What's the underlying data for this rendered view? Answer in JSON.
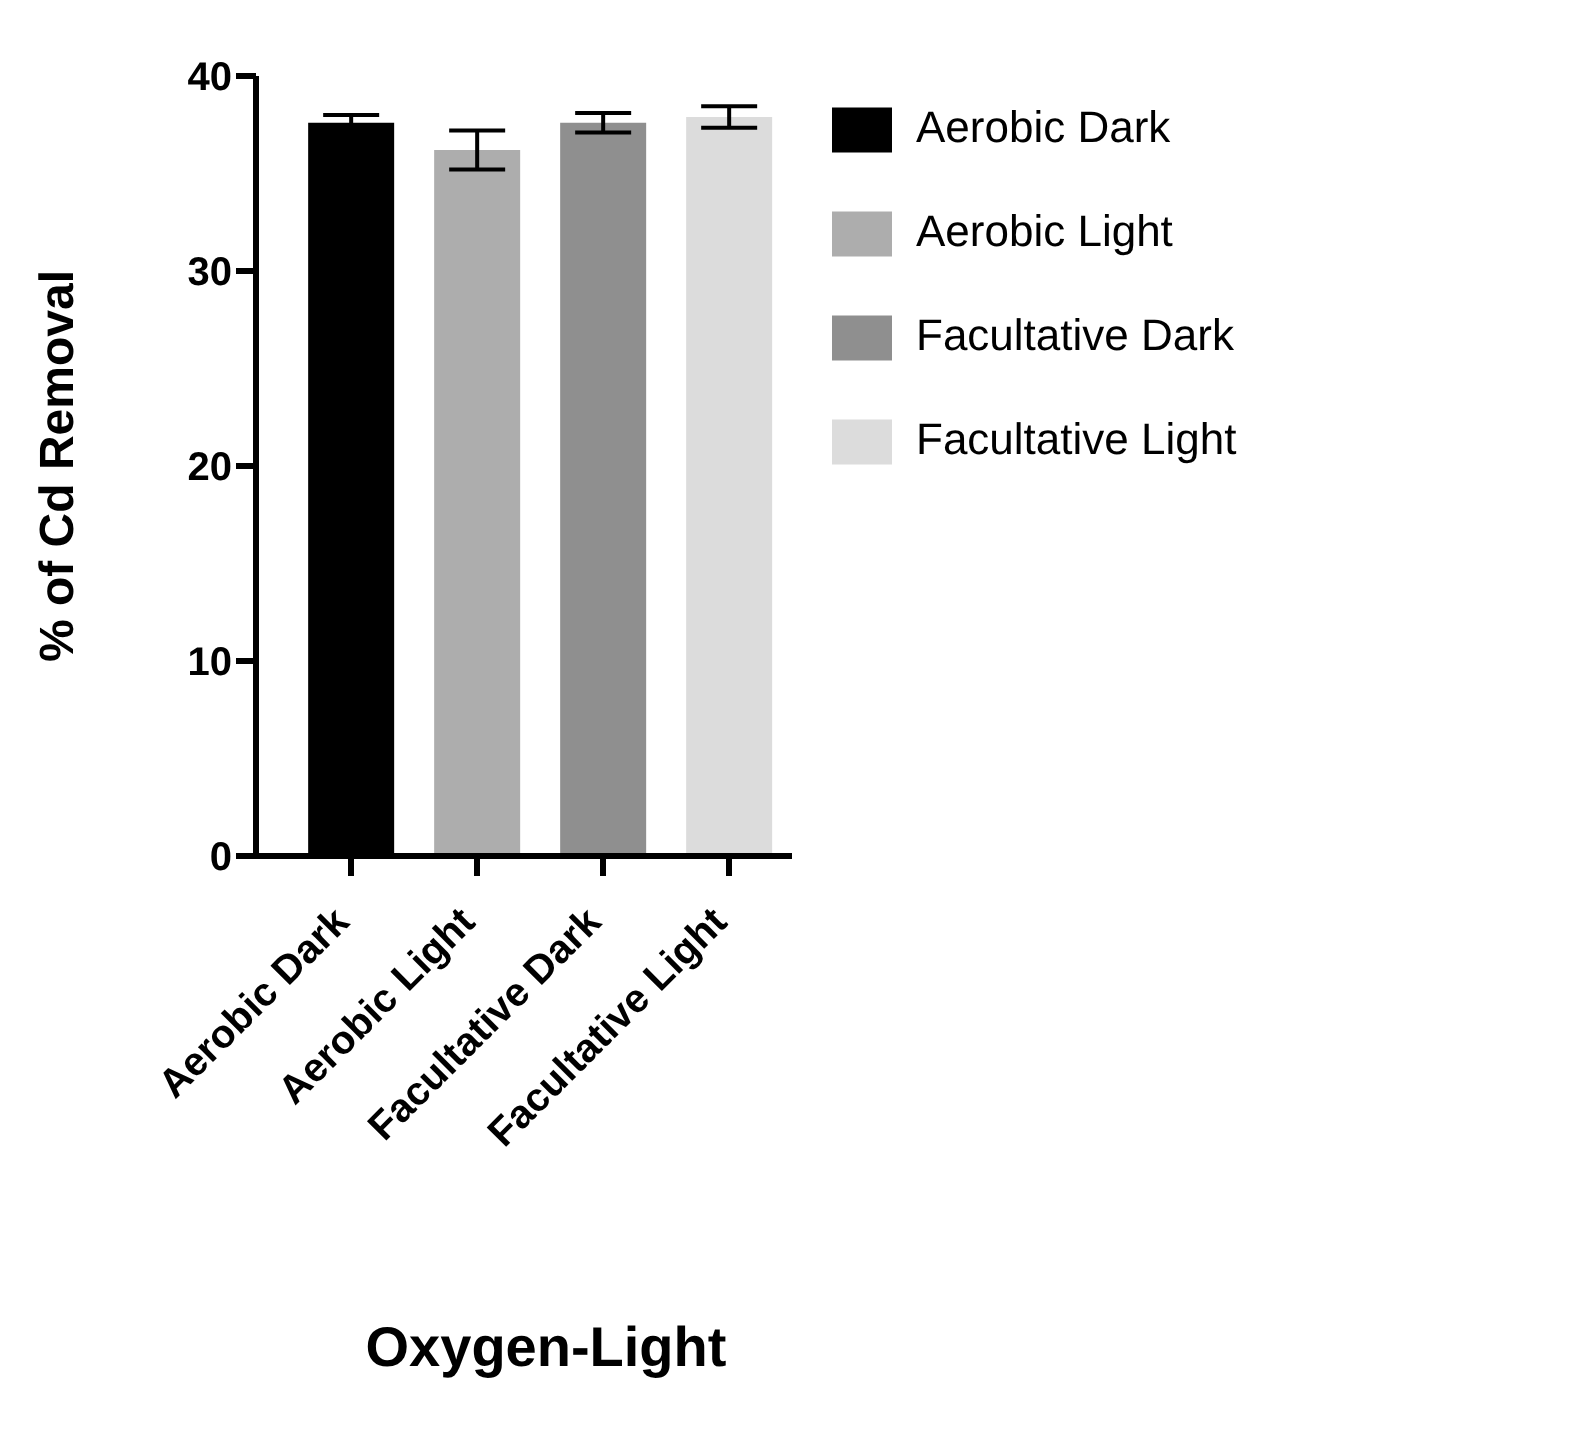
{
  "chart_data": {
    "type": "bar",
    "xlabel": "Oxygen-Light",
    "ylabel": "% of Cd Removal",
    "categories": [
      "Aerobic Dark",
      "Aerobic Light",
      "Facultative Dark",
      "Facultative Light"
    ],
    "series": [
      {
        "name": "Aerobic Dark",
        "color": "#000000",
        "values": [
          37.6,
          null,
          null,
          null
        ],
        "errors": [
          0.4,
          null,
          null,
          null
        ]
      },
      {
        "name": "Aerobic Light",
        "color": "#adadad",
        "values": [
          null,
          36.2,
          null,
          null
        ],
        "errors": [
          null,
          1.0,
          null,
          null
        ]
      },
      {
        "name": "Facultative Dark",
        "color": "#8f8f8f",
        "values": [
          null,
          null,
          37.6,
          null
        ],
        "errors": [
          null,
          null,
          0.5,
          null
        ]
      },
      {
        "name": "Facultative Light",
        "color": "#dcdcdc",
        "values": [
          null,
          null,
          null,
          37.9
        ],
        "errors": [
          null,
          null,
          null,
          0.55
        ]
      }
    ],
    "stacked": true,
    "ylim": [
      0,
      40
    ],
    "yticks": [
      0,
      10,
      20,
      30,
      40
    ],
    "legend": "top right"
  }
}
